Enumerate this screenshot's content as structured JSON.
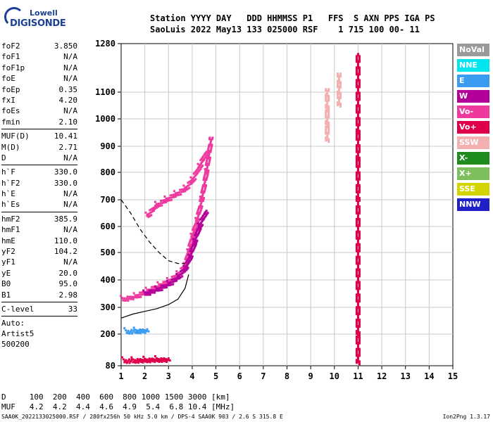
{
  "logo": {
    "line1": "Lowell",
    "line2": "DIGISONDE"
  },
  "header": {
    "labels": "Station YYYY DAY   DDD HHMMSS P1   FFS  S AXN PPS IGA PS",
    "values": "SaoLuis 2022 May13 133 025000 RSF    1 715 100 00- 11"
  },
  "params": [
    {
      "name": "foF2",
      "value": "3.850"
    },
    {
      "name": "foF1",
      "value": "N/A"
    },
    {
      "name": "foF1p",
      "value": "N/A"
    },
    {
      "name": "foE",
      "value": "N/A"
    },
    {
      "name": "foEp",
      "value": "0.35"
    },
    {
      "name": "fxI",
      "value": "4.20"
    },
    {
      "name": "foEs",
      "value": "N/A"
    },
    {
      "name": "fmin",
      "value": "2.10"
    },
    {
      "sep": true
    },
    {
      "name": "MUF(D)",
      "value": "10.41"
    },
    {
      "name": "M(D)",
      "value": "2.71"
    },
    {
      "name": "D",
      "value": "N/A"
    },
    {
      "sep": true
    },
    {
      "name": "h`F",
      "value": "330.0"
    },
    {
      "name": "h`F2",
      "value": "330.0"
    },
    {
      "name": "h`E",
      "value": "N/A"
    },
    {
      "name": "h`Es",
      "value": "N/A"
    },
    {
      "sep": true
    },
    {
      "name": "hmF2",
      "value": "385.9"
    },
    {
      "name": "hmF1",
      "value": "N/A"
    },
    {
      "name": "hmE",
      "value": "110.0"
    },
    {
      "name": "yF2",
      "value": "104.2"
    },
    {
      "name": "yF1",
      "value": "N/A"
    },
    {
      "name": "yE",
      "value": "20.0"
    },
    {
      "name": "B0",
      "value": "95.0"
    },
    {
      "name": "B1",
      "value": "2.98"
    },
    {
      "sep": true
    },
    {
      "name": "C-level",
      "value": "33"
    },
    {
      "sep": true
    },
    {
      "note": "Auto:"
    },
    {
      "note": "Artist5"
    },
    {
      "note": "500200"
    }
  ],
  "legend": [
    {
      "label": "NoVal",
      "color": "#9a9a9a"
    },
    {
      "label": "NNE",
      "color": "#00e5ee"
    },
    {
      "label": "E",
      "color": "#3a9cf0"
    },
    {
      "label": "W",
      "color": "#b3009a"
    },
    {
      "label": "Vo-",
      "color": "#ee3a9e"
    },
    {
      "label": "Vo+",
      "color": "#e0004a"
    },
    {
      "label": "SSW",
      "color": "#f2b0b0"
    },
    {
      "label": "X-",
      "color": "#1e8c1e"
    },
    {
      "label": "X+",
      "color": "#7cbf5c"
    },
    {
      "label": "SSE",
      "color": "#d4d400"
    },
    {
      "label": "NNW",
      "color": "#2020c8"
    }
  ],
  "bottom": {
    "d_row": "D     100  200  400  600  800 1000 1500 3000 [km]",
    "muf_row": "MUF   4.2  4.2  4.4  4.6  4.9  5.4  6.8 10.4 [MHz]"
  },
  "footer": "SAA0K_2022133025000.RSF / 280fx256h 50 kHz 5.0 km / DPS-4 SAA0K 903 / 2.6 S 315.8 E",
  "version": "Ion2Png 1.3.17",
  "chart_data": {
    "type": "scatter",
    "title": "",
    "xlabel": "",
    "ylabel": "",
    "xlim": [
      1,
      15
    ],
    "ylim": [
      80,
      1280
    ],
    "x_ticks": [
      1,
      2,
      3,
      4,
      5,
      6,
      7,
      8,
      9,
      10,
      11,
      12,
      13,
      14,
      15
    ],
    "y_ticks": [
      80,
      200,
      300,
      400,
      500,
      600,
      700,
      800,
      900,
      1000,
      1100,
      1280
    ],
    "y_scale": "nonlinear (ionogram virtual height)",
    "grid": true,
    "echo_traces": [
      {
        "name": "o-trace F",
        "color_key": "Vo-",
        "x": [
          1.05,
          1.6,
          2.1,
          2.6,
          3.0,
          3.4,
          3.7,
          3.85,
          4.0,
          4.2,
          4.4,
          4.6,
          4.8
        ],
        "y": [
          330,
          340,
          360,
          380,
          395,
          420,
          450,
          500,
          560,
          620,
          700,
          800,
          930
        ]
      },
      {
        "name": "x-trace F",
        "color_key": "W",
        "x": [
          2.0,
          2.5,
          3.0,
          3.4,
          3.7,
          3.9,
          4.1,
          4.3,
          4.6
        ],
        "y": [
          350,
          365,
          385,
          410,
          440,
          480,
          540,
          600,
          660
        ]
      },
      {
        "name": "multiple F echo",
        "color_key": "Vo-",
        "x": [
          2.1,
          2.5,
          2.9,
          3.3,
          3.7,
          4.0,
          4.3,
          4.6
        ],
        "y": [
          640,
          680,
          700,
          720,
          740,
          770,
          820,
          880
        ]
      },
      {
        "name": "E echo",
        "color_key": "Vo+",
        "x": [
          1.1,
          1.5,
          2.0,
          2.5,
          3.0
        ],
        "y": [
          100,
          100,
          102,
          104,
          104
        ]
      },
      {
        "name": "Es echo",
        "color_key": "E",
        "x": [
          1.2,
          1.6,
          2.1
        ],
        "y": [
          210,
          212,
          214
        ]
      },
      {
        "name": "spread high 1",
        "color_key": "SSW",
        "x": [
          9.7,
          9.7,
          9.7,
          9.7,
          9.7
        ],
        "y": [
          920,
          980,
          1040,
          1080,
          1110
        ]
      },
      {
        "name": "spread high 2",
        "color_key": "SSW",
        "x": [
          10.2,
          10.2,
          10.2,
          10.2
        ],
        "y": [
          1050,
          1090,
          1130,
          1170
        ]
      },
      {
        "name": "vertical line 11",
        "color_key": "Vo+",
        "x": [
          11.0,
          11.0,
          11.0,
          11.0,
          11.0,
          11.0
        ],
        "y": [
          90,
          200,
          700,
          850,
          950,
          1240
        ]
      }
    ],
    "model_curves": [
      {
        "name": "profile",
        "style": "solid",
        "x": [
          1.0,
          1.5,
          2.0,
          2.5,
          3.0,
          3.4,
          3.7,
          3.85
        ],
        "y": [
          260,
          275,
          285,
          295,
          310,
          330,
          370,
          420
        ]
      },
      {
        "name": "muf curve",
        "style": "dashed",
        "x": [
          1.0,
          1.4,
          1.8,
          2.2,
          2.6,
          3.0,
          3.4,
          3.7
        ],
        "y": [
          700,
          650,
          590,
          540,
          500,
          470,
          460,
          460
        ]
      }
    ]
  }
}
